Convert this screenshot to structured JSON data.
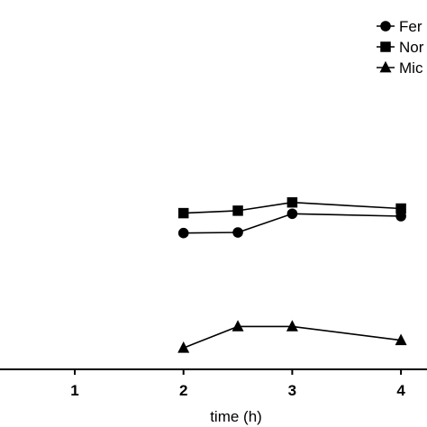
{
  "chart_data": {
    "type": "line",
    "title": "",
    "xlabel": "time (h)",
    "ylabel": "",
    "x_ticks": [
      "1",
      "2",
      "3",
      "4"
    ],
    "xlim": [
      -0.5,
      4.12
    ],
    "ylim": [
      0,
      10
    ],
    "grid": false,
    "legend_position": "top-right",
    "series": [
      {
        "name": "Fer",
        "marker": "circle",
        "x": [
          2,
          2.5,
          3,
          4
        ],
        "y": [
          4.45,
          4.47,
          5.08,
          5.0
        ]
      },
      {
        "name": "Nor",
        "marker": "square",
        "x": [
          2,
          2.5,
          3,
          4
        ],
        "y": [
          5.1,
          5.18,
          5.45,
          5.25
        ]
      },
      {
        "name": "Mic",
        "marker": "triangle",
        "x": [
          2,
          2.5,
          3,
          4
        ],
        "y": [
          0.7,
          1.4,
          1.4,
          0.95
        ]
      }
    ],
    "colors": {
      "ink": "#000000"
    }
  }
}
